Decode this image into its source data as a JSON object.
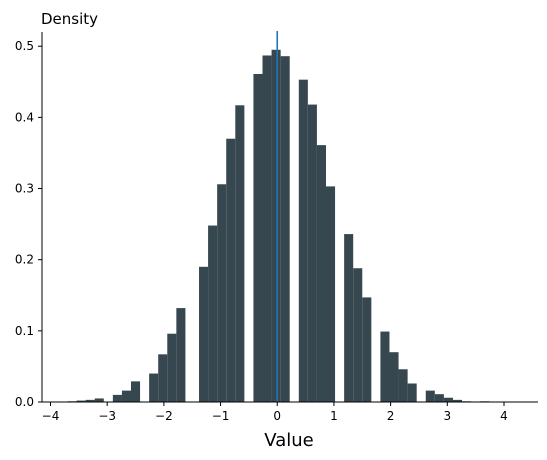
{
  "chart_data": {
    "type": "bar",
    "title": "",
    "xlabel": "Value",
    "ylabel": "Density",
    "xlim": [
      -4.15,
      4.6
    ],
    "ylim": [
      0,
      0.52
    ],
    "xticks": [
      -4,
      -3,
      -2,
      -1,
      0,
      1,
      2,
      3,
      4
    ],
    "yticks": [
      0.0,
      0.1,
      0.2,
      0.3,
      0.4,
      0.5
    ],
    "xtick_labels": [
      "−4",
      "−3",
      "−2",
      "−1",
      "0",
      "1",
      "2",
      "3",
      "4"
    ],
    "ytick_labels": [
      "0.0",
      "0.1",
      "0.2",
      "0.3",
      "0.4",
      "0.5"
    ],
    "bin_width": 0.16,
    "bins": [
      {
        "start": -3.7,
        "value": 0.001
      },
      {
        "start": -3.54,
        "value": 0.002
      },
      {
        "start": -3.38,
        "value": 0.003
      },
      {
        "start": -3.22,
        "value": 0.005
      },
      {
        "start": -2.9,
        "value": 0.01
      },
      {
        "start": -2.74,
        "value": 0.016
      },
      {
        "start": -2.58,
        "value": 0.029
      },
      {
        "start": -2.26,
        "value": 0.04
      },
      {
        "start": -2.1,
        "value": 0.067
      },
      {
        "start": -1.94,
        "value": 0.096
      },
      {
        "start": -1.78,
        "value": 0.132
      },
      {
        "start": -1.38,
        "value": 0.19
      },
      {
        "start": -1.22,
        "value": 0.248
      },
      {
        "start": -1.06,
        "value": 0.306
      },
      {
        "start": -0.9,
        "value": 0.37
      },
      {
        "start": -0.74,
        "value": 0.417
      },
      {
        "start": -0.42,
        "value": 0.461
      },
      {
        "start": -0.26,
        "value": 0.487
      },
      {
        "start": -0.1,
        "value": 0.495
      },
      {
        "start": 0.06,
        "value": 0.486
      },
      {
        "start": 0.38,
        "value": 0.453
      },
      {
        "start": 0.54,
        "value": 0.418
      },
      {
        "start": 0.7,
        "value": 0.361
      },
      {
        "start": 0.86,
        "value": 0.303
      },
      {
        "start": 1.18,
        "value": 0.236
      },
      {
        "start": 1.34,
        "value": 0.188
      },
      {
        "start": 1.5,
        "value": 0.147
      },
      {
        "start": 1.82,
        "value": 0.099
      },
      {
        "start": 1.98,
        "value": 0.07
      },
      {
        "start": 2.14,
        "value": 0.046
      },
      {
        "start": 2.3,
        "value": 0.026
      },
      {
        "start": 2.62,
        "value": 0.016
      },
      {
        "start": 2.78,
        "value": 0.011
      },
      {
        "start": 2.94,
        "value": 0.006
      },
      {
        "start": 3.1,
        "value": 0.003
      },
      {
        "start": 3.26,
        "value": 0.001
      },
      {
        "start": 3.58,
        "value": 0.001
      }
    ],
    "reference_line_x": 0,
    "bar_color": "#37474f",
    "line_color": "#1f77b4",
    "grid": false,
    "legend": "none"
  }
}
